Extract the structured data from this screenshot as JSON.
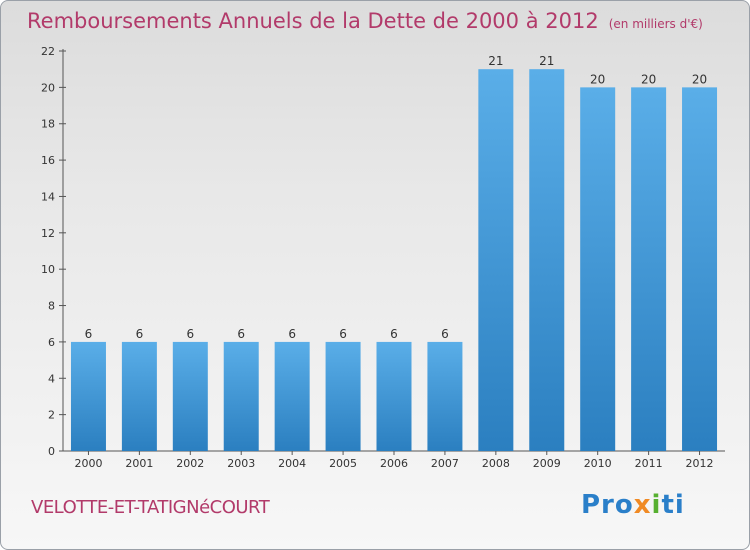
{
  "title": "Remboursements Annuels de la Dette de 2000 à 2012",
  "unit": "(en milliers d'€)",
  "commune": "VELOTTE-ET-TATIGNéCOURT",
  "logo": {
    "p1": "Pro",
    "p2": "x",
    "p3": "i",
    "p4": "ti"
  },
  "colors": {
    "bar": "#3f95d8",
    "bar_light": "#5aaee8",
    "bar_dark": "#2b7fc0",
    "title": "#b23a6a"
  },
  "chart_data": {
    "type": "bar",
    "categories": [
      "2000",
      "2001",
      "2002",
      "2003",
      "2004",
      "2005",
      "2006",
      "2007",
      "2008",
      "2009",
      "2010",
      "2011",
      "2012"
    ],
    "values": [
      6,
      6,
      6,
      6,
      6,
      6,
      6,
      6,
      21,
      21,
      20,
      20,
      20
    ],
    "ylim": [
      0,
      22
    ],
    "yticks": [
      0,
      2,
      4,
      6,
      8,
      10,
      12,
      14,
      16,
      18,
      20,
      22
    ],
    "grid": false
  }
}
